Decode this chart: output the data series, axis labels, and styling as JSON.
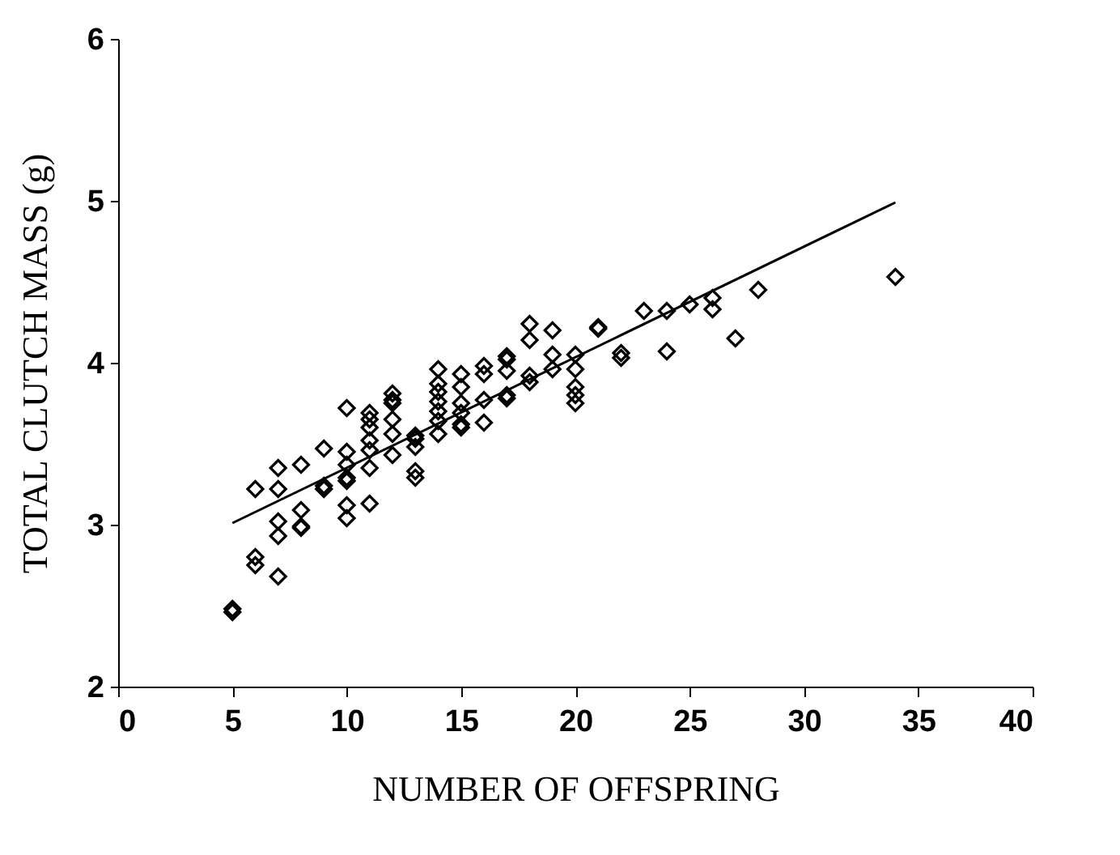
{
  "chart_data": {
    "type": "scatter",
    "xlabel": "NUMBER OF OFFSPRING",
    "ylabel": "TOTAL CLUTCH MASS (g)",
    "xlim": [
      0,
      40
    ],
    "xticks": [
      0,
      5,
      10,
      15,
      20,
      25,
      30,
      35,
      40
    ],
    "ylim": [
      2,
      6
    ],
    "yticks": [
      2,
      3,
      4,
      5,
      6
    ],
    "grid": false,
    "series": [
      {
        "marker": "diamond",
        "color": "#000000",
        "x": [
          5,
          5,
          6,
          6,
          6,
          7,
          7,
          7,
          7,
          7,
          8,
          8,
          8,
          8,
          9,
          9,
          9,
          10,
          10,
          10,
          10,
          10,
          10,
          10,
          11,
          11,
          11,
          11,
          11,
          11,
          11,
          12,
          12,
          12,
          12,
          12,
          12,
          13,
          13,
          13,
          13,
          13,
          14,
          14,
          14,
          14,
          14,
          14,
          14,
          15,
          15,
          15,
          15,
          15,
          15,
          16,
          16,
          16,
          16,
          17,
          17,
          17,
          17,
          17,
          18,
          18,
          18,
          18,
          19,
          19,
          19,
          20,
          20,
          20,
          20,
          20,
          21,
          21,
          22,
          22,
          23,
          24,
          24,
          25,
          26,
          26,
          27,
          28,
          34
        ],
        "values": [
          2.48,
          2.46,
          3.22,
          2.8,
          2.75,
          3.35,
          3.22,
          3.02,
          2.93,
          2.68,
          3.37,
          3.09,
          2.99,
          2.98,
          3.47,
          3.24,
          3.22,
          3.72,
          3.45,
          3.37,
          3.29,
          3.27,
          3.12,
          3.04,
          3.69,
          3.65,
          3.6,
          3.52,
          3.46,
          3.35,
          3.13,
          3.81,
          3.77,
          3.75,
          3.65,
          3.56,
          3.43,
          3.55,
          3.53,
          3.48,
          3.33,
          3.29,
          3.96,
          3.87,
          3.82,
          3.76,
          3.7,
          3.64,
          3.56,
          3.93,
          3.85,
          3.75,
          3.69,
          3.62,
          3.6,
          3.98,
          3.93,
          3.77,
          3.63,
          4.04,
          4.02,
          3.95,
          3.8,
          3.78,
          4.24,
          4.14,
          3.92,
          3.88,
          4.2,
          4.05,
          3.96,
          4.05,
          3.96,
          3.85,
          3.8,
          3.75,
          4.22,
          4.21,
          4.06,
          4.03,
          4.32,
          4.32,
          4.07,
          4.36,
          4.4,
          4.33,
          4.15,
          4.45,
          4.53
        ]
      },
      {
        "type": "line",
        "color": "#000000",
        "x": [
          5,
          34
        ],
        "values": [
          3.01,
          4.99
        ]
      }
    ]
  }
}
